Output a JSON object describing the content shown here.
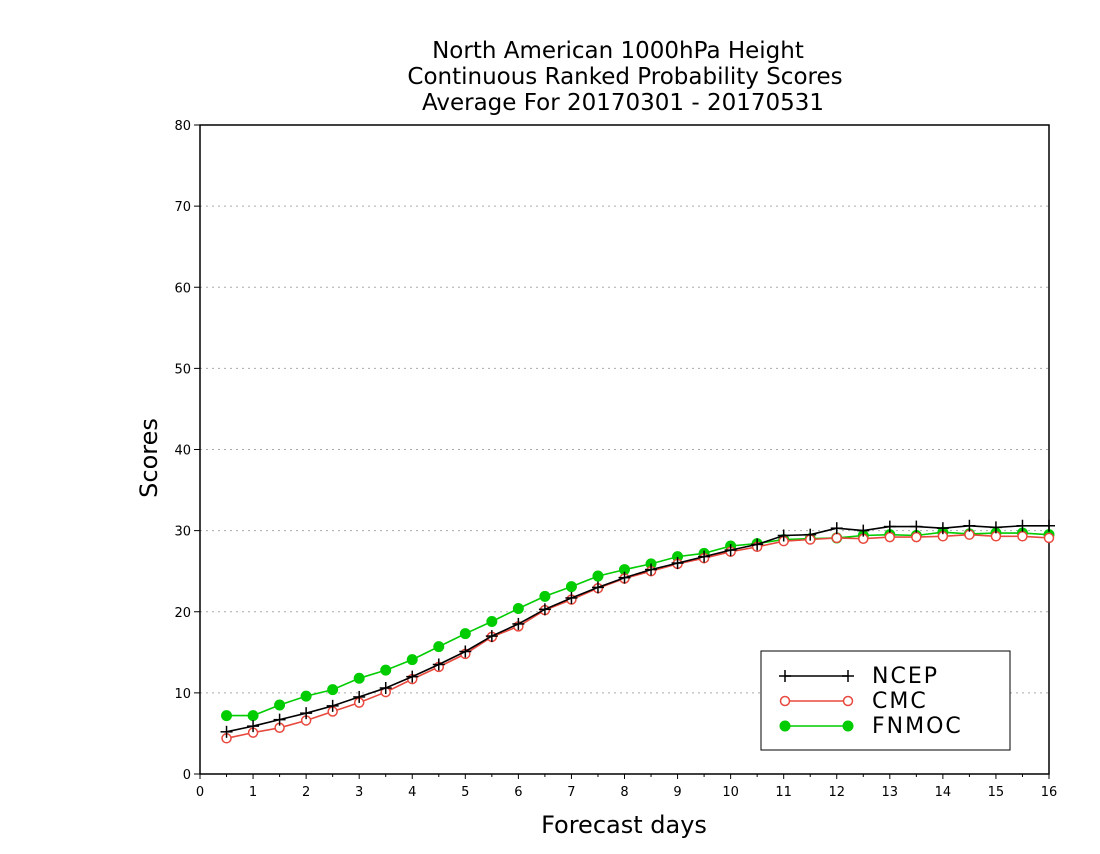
{
  "chart_data": {
    "type": "line",
    "title": [
      "North American 1000hPa Height",
      "Continuous Ranked Probability Scores",
      "Average For 20170301 - 20170531"
    ],
    "xlabel": "Forecast days",
    "ylabel": "Scores",
    "xlim": [
      0,
      16
    ],
    "ylim": [
      0,
      80
    ],
    "xticks": [
      "0",
      "1",
      "2",
      "3",
      "4",
      "5",
      "6",
      "7",
      "8",
      "9",
      "10",
      "11",
      "12",
      "13",
      "14",
      "15",
      "16"
    ],
    "yticks": [
      "0",
      "10",
      "20",
      "30",
      "40",
      "50",
      "60",
      "70",
      "80"
    ],
    "grid": "horizontal dotted",
    "legend_position": "bottom-right",
    "x": [
      0.5,
      1,
      1.5,
      2,
      2.5,
      3,
      3.5,
      4,
      4.5,
      5,
      5.5,
      6,
      6.5,
      7,
      7.5,
      8,
      8.5,
      9,
      9.5,
      10,
      10.5,
      11,
      11.5,
      12,
      12.5,
      13,
      13.5,
      14,
      14.5,
      15,
      15.5,
      16
    ],
    "series": [
      {
        "name": "NCEP",
        "color": "#000000",
        "marker": "plus",
        "values": [
          5.2,
          5.9,
          6.7,
          7.5,
          8.4,
          9.5,
          10.6,
          12.0,
          13.5,
          15.1,
          17.0,
          18.5,
          20.3,
          21.7,
          23.0,
          24.2,
          25.2,
          26.0,
          26.8,
          27.6,
          28.3,
          29.4,
          29.5,
          30.3,
          30.0,
          30.5,
          30.5,
          30.3,
          30.6,
          30.4,
          30.6,
          30.6
        ]
      },
      {
        "name": "CMC",
        "color": "#e8483d",
        "marker": "open-circle",
        "values": [
          4.4,
          5.1,
          5.7,
          6.6,
          7.7,
          8.8,
          10.1,
          11.7,
          13.2,
          14.8,
          16.9,
          18.2,
          20.2,
          21.5,
          22.9,
          24.1,
          25.0,
          25.9,
          26.6,
          27.4,
          28.0,
          28.7,
          28.9,
          29.1,
          29.0,
          29.2,
          29.2,
          29.3,
          29.5,
          29.3,
          29.3,
          29.1
        ]
      },
      {
        "name": "FNMOC",
        "color": "#00cc00",
        "marker": "filled-circle",
        "values": [
          7.2,
          7.2,
          8.5,
          9.6,
          10.4,
          11.8,
          12.8,
          14.1,
          15.7,
          17.3,
          18.8,
          20.4,
          21.9,
          23.1,
          24.4,
          25.2,
          25.9,
          26.8,
          27.2,
          28.1,
          28.4,
          28.9,
          29.0,
          29.1,
          29.4,
          29.5,
          29.4,
          29.8,
          29.6,
          29.7,
          29.7,
          29.5
        ]
      }
    ]
  }
}
